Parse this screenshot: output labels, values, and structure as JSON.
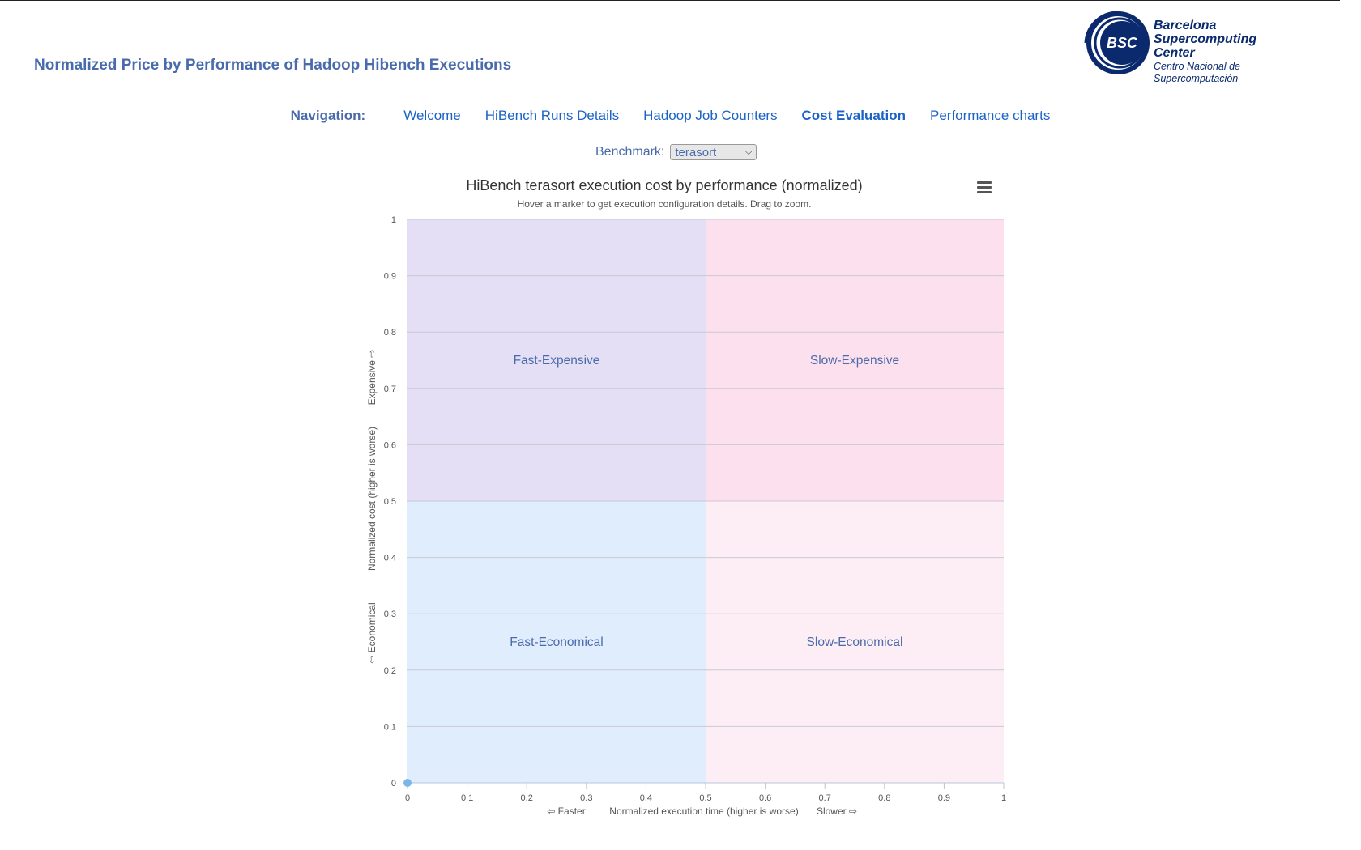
{
  "page": {
    "title": "Normalized Price by Performance of Hadoop Hibench Executions"
  },
  "logo": {
    "badge": "BSC",
    "line1": "Barcelona",
    "line2": "Supercomputing",
    "line3": "Center",
    "subtitle": "Centro Nacional de Supercomputación",
    "color": "#0b2a6e"
  },
  "nav": {
    "label": "Navigation:",
    "items": [
      {
        "label": "Welcome",
        "active": false
      },
      {
        "label": "HiBench Runs Details",
        "active": false
      },
      {
        "label": "Hadoop Job Counters",
        "active": false
      },
      {
        "label": "Cost Evaluation",
        "active": true
      },
      {
        "label": "Performance charts",
        "active": false
      }
    ]
  },
  "benchmark": {
    "label": "Benchmark:",
    "selected": "terasort"
  },
  "chart_data": {
    "type": "scatter",
    "title": "HiBench terasort execution cost by performance (normalized)",
    "subtitle": "Hover a marker to get execution configuration details. Drag to zoom.",
    "xlabel": "Normalized execution time (higher is worse)",
    "xlabel_left": "⇦ Faster",
    "xlabel_right": "Slower ⇨",
    "ylabel": "Normalized cost (higher is worse)",
    "ylabel_low": "⇦ Economical",
    "ylabel_high": "Expensive ⇨",
    "xlim": [
      0,
      1
    ],
    "ylim": [
      0,
      1
    ],
    "xticks": [
      "0",
      "0.1",
      "0.2",
      "0.3",
      "0.4",
      "0.5",
      "0.6",
      "0.7",
      "0.8",
      "0.9",
      "1"
    ],
    "yticks": [
      "0",
      "0.1",
      "0.2",
      "0.3",
      "0.4",
      "0.5",
      "0.6",
      "0.7",
      "0.8",
      "0.9",
      "1"
    ],
    "grid": true,
    "quadrants": [
      {
        "label": "Fast-Expensive",
        "x": [
          0,
          0.5
        ],
        "y": [
          0.5,
          1
        ],
        "color": "#e4dff4"
      },
      {
        "label": "Slow-Expensive",
        "x": [
          0.5,
          1
        ],
        "y": [
          0.5,
          1
        ],
        "color": "#fde0ee"
      },
      {
        "label": "Fast-Economical",
        "x": [
          0,
          0.5
        ],
        "y": [
          0,
          0.5
        ],
        "color": "#e0edfc"
      },
      {
        "label": "Slow-Economical",
        "x": [
          0.5,
          1
        ],
        "y": [
          0,
          0.5
        ],
        "color": "#fdeef5"
      }
    ],
    "points": [
      {
        "x": 0,
        "y": 0
      }
    ],
    "point_color": "#7cb5ec",
    "quadrant_label_color": "#4a6bab"
  }
}
